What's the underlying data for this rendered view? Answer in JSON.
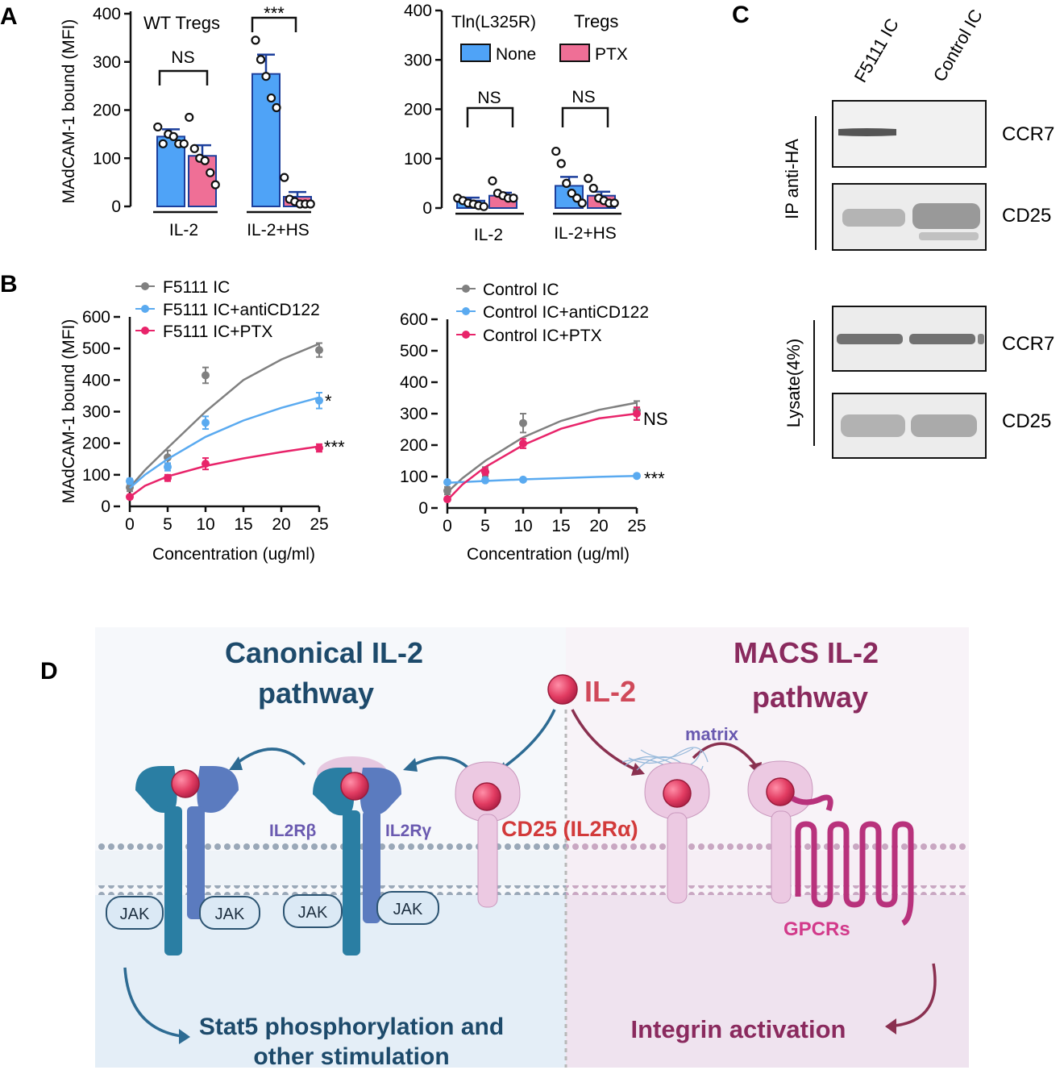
{
  "panel_letters": {
    "a": "A",
    "b": "B",
    "c": "C",
    "d": "D"
  },
  "colors": {
    "blue": "#4fa3f7",
    "pink": "#ef6f96",
    "gray": "#808080",
    "lightblue": "#5aaaf0",
    "magenta": "#e8246a",
    "canon_text": "#1d4a6b",
    "macs_text": "#8a2a5e",
    "red_text": "#d23a3a",
    "purple_label": "#6a5ab0",
    "gpcr": "#b8327c"
  },
  "chart_data": [
    {
      "id": "A-left",
      "type": "bar",
      "title": "WT Tregs",
      "ylabel": "MAdCAM-1 bound (MFI)",
      "ylim": [
        0,
        400
      ],
      "yticks": [
        0,
        100,
        200,
        300,
        400
      ],
      "categories": [
        "IL-2",
        "IL-2+HS"
      ],
      "series": [
        {
          "name": "None",
          "color": "#4fa3f7",
          "values": [
            145,
            275
          ],
          "errors": [
            15,
            40
          ],
          "points": [
            [
              165,
              130,
              150,
              145,
              130,
              130
            ],
            [
              345,
              305,
              270,
              225,
              205
            ]
          ]
        },
        {
          "name": "PTX",
          "color": "#ef6f96",
          "values": [
            105,
            20
          ],
          "errors": [
            22,
            10
          ],
          "points": [
            [
              185,
              120,
              100,
              95,
              70,
              45
            ],
            [
              60,
              15,
              10,
              5,
              5,
              5
            ]
          ]
        }
      ],
      "annotations": [
        "NS",
        "***"
      ]
    },
    {
      "id": "A-right",
      "type": "bar",
      "title": "Tln(L325R)",
      "title2": "Tregs",
      "ylim": [
        0,
        400
      ],
      "yticks": [
        0,
        100,
        200,
        300,
        400
      ],
      "categories": [
        "IL-2",
        "IL-2+HS"
      ],
      "legend": [
        "None",
        "PTX"
      ],
      "series": [
        {
          "name": "None",
          "color": "#4fa3f7",
          "values": [
            15,
            45
          ],
          "errors": [
            6,
            18
          ],
          "points": [
            [
              20,
              15,
              10,
              8,
              5,
              3
            ],
            [
              115,
              90,
              50,
              30,
              20,
              10
            ]
          ]
        },
        {
          "name": "PTX",
          "color": "#ef6f96",
          "values": [
            25,
            25
          ],
          "errors": [
            6,
            8
          ],
          "points": [
            [
              55,
              30,
              25,
              20,
              20
            ],
            [
              60,
              40,
              20,
              15,
              10,
              10
            ]
          ]
        }
      ],
      "annotations": [
        "NS",
        "NS"
      ]
    },
    {
      "id": "B-left",
      "type": "line",
      "ylabel": "MAdCAM-1 bound (MFI)",
      "xlabel": "Concentration (ug/ml)",
      "xlim": [
        0,
        25
      ],
      "xticks": [
        0,
        5,
        10,
        15,
        20,
        25
      ],
      "ylim": [
        0,
        600
      ],
      "yticks": [
        0,
        100,
        200,
        300,
        400,
        500,
        600
      ],
      "series": [
        {
          "name": "F5111 IC",
          "color": "#808080",
          "x": [
            0,
            5,
            10,
            25
          ],
          "y": [
            60,
            155,
            415,
            495
          ],
          "err": [
            12,
            22,
            25,
            22
          ],
          "fit": [
            [
              0,
              60
            ],
            [
              2,
              115
            ],
            [
              5,
              185
            ],
            [
              10,
              300
            ],
            [
              15,
              400
            ],
            [
              20,
              465
            ],
            [
              25,
              515
            ]
          ]
        },
        {
          "name": "F5111 IC+antiCD122",
          "color": "#5aaaf0",
          "x": [
            0,
            5,
            10,
            25
          ],
          "y": [
            80,
            125,
            265,
            335
          ],
          "err": [
            8,
            12,
            20,
            25
          ],
          "fit": [
            [
              0,
              58
            ],
            [
              2,
              100
            ],
            [
              5,
              150
            ],
            [
              10,
              220
            ],
            [
              15,
              272
            ],
            [
              20,
              312
            ],
            [
              25,
              345
            ]
          ]
        },
        {
          "name": "F5111 IC+PTX",
          "color": "#e8246a",
          "x": [
            0,
            5,
            10,
            25
          ],
          "y": [
            30,
            90,
            135,
            185
          ],
          "err": [
            6,
            10,
            18,
            12
          ],
          "fit": [
            [
              0,
              30
            ],
            [
              2,
              65
            ],
            [
              5,
              95
            ],
            [
              10,
              128
            ],
            [
              15,
              152
            ],
            [
              20,
              172
            ],
            [
              25,
              190
            ]
          ]
        }
      ],
      "annotations": [
        "*",
        "***"
      ]
    },
    {
      "id": "B-right",
      "type": "line",
      "xlabel": "Concentration (ug/ml)",
      "xlim": [
        0,
        25
      ],
      "xticks": [
        0,
        5,
        10,
        15,
        20,
        25
      ],
      "ylim": [
        0,
        600
      ],
      "yticks": [
        0,
        100,
        200,
        300,
        400,
        500,
        600
      ],
      "series": [
        {
          "name": "Control IC",
          "color": "#808080",
          "x": [
            0,
            5,
            10,
            25
          ],
          "y": [
            55,
            115,
            270,
            310
          ],
          "err": [
            12,
            15,
            30,
            30
          ],
          "fit": [
            [
              0,
              50
            ],
            [
              2,
              95
            ],
            [
              5,
              150
            ],
            [
              10,
              225
            ],
            [
              15,
              277
            ],
            [
              20,
              312
            ],
            [
              25,
              335
            ]
          ]
        },
        {
          "name": "Control IC+antiCD122",
          "color": "#5aaaf0",
          "x": [
            0,
            5,
            10,
            25
          ],
          "y": [
            82,
            88,
            90,
            102
          ],
          "err": [
            4,
            4,
            4,
            5
          ],
          "fit": [
            [
              0,
              80
            ],
            [
              5,
              86
            ],
            [
              10,
              91
            ],
            [
              15,
              95
            ],
            [
              20,
              99
            ],
            [
              25,
              102
            ]
          ]
        },
        {
          "name": "Control IC+PTX",
          "color": "#e8246a",
          "x": [
            0,
            5,
            10,
            25
          ],
          "y": [
            28,
            115,
            205,
            300
          ],
          "err": [
            6,
            10,
            15,
            20
          ],
          "fit": [
            [
              0,
              25
            ],
            [
              2,
              75
            ],
            [
              5,
              130
            ],
            [
              10,
              200
            ],
            [
              15,
              252
            ],
            [
              20,
              285
            ],
            [
              25,
              300
            ]
          ]
        }
      ],
      "annotations": [
        "NS",
        "***"
      ]
    }
  ],
  "blot": {
    "lanes": [
      "F5111 IC",
      "Control IC"
    ],
    "groups": [
      "IP anti-HA",
      "Lysate(4%)"
    ],
    "bands": [
      "CCR7",
      "CD25",
      "CCR7",
      "CD25"
    ]
  },
  "diagram": {
    "canonical_title": [
      "Canonical IL-2",
      "pathway"
    ],
    "macs_title": [
      "MACS IL-2",
      "pathway"
    ],
    "il2": "IL-2",
    "matrix": "matrix",
    "il2rb": "IL2Rβ",
    "il2rg": "IL2Rγ",
    "cd25": "CD25 (IL2Rα)",
    "jak": "JAK",
    "gpcrs": "GPCRs",
    "stat5": [
      "Stat5 phosphorylation and",
      "other stimulation"
    ],
    "integrin": "Integrin activation"
  }
}
